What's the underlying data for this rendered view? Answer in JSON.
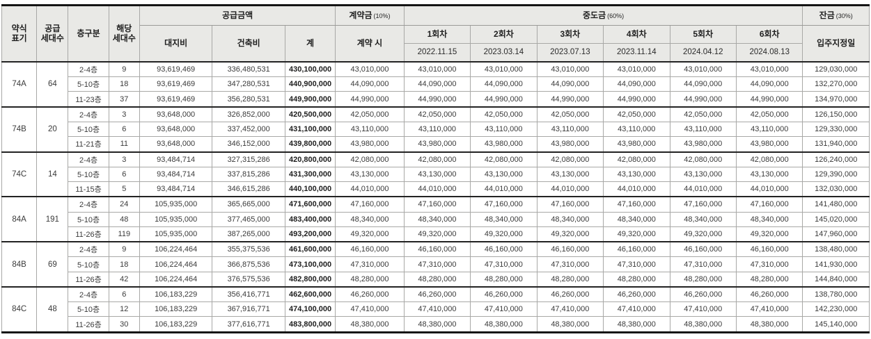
{
  "table": {
    "headers": {
      "abbr": "약식\n표기",
      "supply_units": "공급\n세대수",
      "floor_division": "층구분",
      "unit_count": "해당\n세대수",
      "supply_amount_group": "공급금액",
      "land_cost": "대지비",
      "construction_cost": "건축비",
      "total": "계",
      "contract_group": "계약금",
      "contract_pct": "(10%)",
      "at_contract": "계약 시",
      "interim_group": "중도금",
      "interim_pct": "(60%)",
      "installments": [
        {
          "label": "1회차",
          "date": "2022.11.15"
        },
        {
          "label": "2회차",
          "date": "2023.03.14"
        },
        {
          "label": "3회차",
          "date": "2023.07.13"
        },
        {
          "label": "4회차",
          "date": "2023.11.14"
        },
        {
          "label": "5회차",
          "date": "2024.04.12"
        },
        {
          "label": "6회차",
          "date": "2024.08.13"
        }
      ],
      "balance_group": "잔금",
      "balance_pct": "(30%)",
      "move_in": "입주지정일"
    },
    "groups": [
      {
        "abbr": "74A",
        "supply_units": "64",
        "rows": [
          {
            "floor": "2-4층",
            "units": "9",
            "land": "93,619,469",
            "construction": "336,480,531",
            "total": "430,100,000",
            "contract": "43,010,000",
            "installments": [
              "43,010,000",
              "43,010,000",
              "43,010,000",
              "43,010,000",
              "43,010,000",
              "43,010,000"
            ],
            "balance": "129,030,000"
          },
          {
            "floor": "5-10층",
            "units": "18",
            "land": "93,619,469",
            "construction": "347,280,531",
            "total": "440,900,000",
            "contract": "44,090,000",
            "installments": [
              "44,090,000",
              "44,090,000",
              "44,090,000",
              "44,090,000",
              "44,090,000",
              "44,090,000"
            ],
            "balance": "132,270,000"
          },
          {
            "floor": "11-23층",
            "units": "37",
            "land": "93,619,469",
            "construction": "356,280,531",
            "total": "449,900,000",
            "contract": "44,990,000",
            "installments": [
              "44,990,000",
              "44,990,000",
              "44,990,000",
              "44,990,000",
              "44,990,000",
              "44,990,000"
            ],
            "balance": "134,970,000"
          }
        ]
      },
      {
        "abbr": "74B",
        "supply_units": "20",
        "rows": [
          {
            "floor": "2-4층",
            "units": "3",
            "land": "93,648,000",
            "construction": "326,852,000",
            "total": "420,500,000",
            "contract": "42,050,000",
            "installments": [
              "42,050,000",
              "42,050,000",
              "42,050,000",
              "42,050,000",
              "42,050,000",
              "42,050,000"
            ],
            "balance": "126,150,000"
          },
          {
            "floor": "5-10층",
            "units": "6",
            "land": "93,648,000",
            "construction": "337,452,000",
            "total": "431,100,000",
            "contract": "43,110,000",
            "installments": [
              "43,110,000",
              "43,110,000",
              "43,110,000",
              "43,110,000",
              "43,110,000",
              "43,110,000"
            ],
            "balance": "129,330,000"
          },
          {
            "floor": "11-21층",
            "units": "11",
            "land": "93,648,000",
            "construction": "346,152,000",
            "total": "439,800,000",
            "contract": "43,980,000",
            "installments": [
              "43,980,000",
              "43,980,000",
              "43,980,000",
              "43,980,000",
              "43,980,000",
              "43,980,000"
            ],
            "balance": "131,940,000"
          }
        ]
      },
      {
        "abbr": "74C",
        "supply_units": "14",
        "rows": [
          {
            "floor": "2-4층",
            "units": "3",
            "land": "93,484,714",
            "construction": "327,315,286",
            "total": "420,800,000",
            "contract": "42,080,000",
            "installments": [
              "42,080,000",
              "42,080,000",
              "42,080,000",
              "42,080,000",
              "42,080,000",
              "42,080,000"
            ],
            "balance": "126,240,000"
          },
          {
            "floor": "5-10층",
            "units": "6",
            "land": "93,484,714",
            "construction": "337,815,286",
            "total": "431,300,000",
            "contract": "43,130,000",
            "installments": [
              "43,130,000",
              "43,130,000",
              "43,130,000",
              "43,130,000",
              "43,130,000",
              "43,130,000"
            ],
            "balance": "129,390,000"
          },
          {
            "floor": "11-15층",
            "units": "5",
            "land": "93,484,714",
            "construction": "346,615,286",
            "total": "440,100,000",
            "contract": "44,010,000",
            "installments": [
              "44,010,000",
              "44,010,000",
              "44,010,000",
              "44,010,000",
              "44,010,000",
              "44,010,000"
            ],
            "balance": "132,030,000"
          }
        ]
      },
      {
        "abbr": "84A",
        "supply_units": "191",
        "rows": [
          {
            "floor": "2-4층",
            "units": "24",
            "land": "105,935,000",
            "construction": "365,665,000",
            "total": "471,600,000",
            "contract": "47,160,000",
            "installments": [
              "47,160,000",
              "47,160,000",
              "47,160,000",
              "47,160,000",
              "47,160,000",
              "47,160,000"
            ],
            "balance": "141,480,000"
          },
          {
            "floor": "5-10층",
            "units": "48",
            "land": "105,935,000",
            "construction": "377,465,000",
            "total": "483,400,000",
            "contract": "48,340,000",
            "installments": [
              "48,340,000",
              "48,340,000",
              "48,340,000",
              "48,340,000",
              "48,340,000",
              "48,340,000"
            ],
            "balance": "145,020,000"
          },
          {
            "floor": "11-26층",
            "units": "119",
            "land": "105,935,000",
            "construction": "387,265,000",
            "total": "493,200,000",
            "contract": "49,320,000",
            "installments": [
              "49,320,000",
              "49,320,000",
              "49,320,000",
              "49,320,000",
              "49,320,000",
              "49,320,000"
            ],
            "balance": "147,960,000"
          }
        ]
      },
      {
        "abbr": "84B",
        "supply_units": "69",
        "rows": [
          {
            "floor": "2-4층",
            "units": "9",
            "land": "106,224,464",
            "construction": "355,375,536",
            "total": "461,600,000",
            "contract": "46,160,000",
            "installments": [
              "46,160,000",
              "46,160,000",
              "46,160,000",
              "46,160,000",
              "46,160,000",
              "46,160,000"
            ],
            "balance": "138,480,000"
          },
          {
            "floor": "5-10층",
            "units": "18",
            "land": "106,224,464",
            "construction": "366,875,536",
            "total": "473,100,000",
            "contract": "47,310,000",
            "installments": [
              "47,310,000",
              "47,310,000",
              "47,310,000",
              "47,310,000",
              "47,310,000",
              "47,310,000"
            ],
            "balance": "141,930,000"
          },
          {
            "floor": "11-26층",
            "units": "42",
            "land": "106,224,464",
            "construction": "376,575,536",
            "total": "482,800,000",
            "contract": "48,280,000",
            "installments": [
              "48,280,000",
              "48,280,000",
              "48,280,000",
              "48,280,000",
              "48,280,000",
              "48,280,000"
            ],
            "balance": "144,840,000"
          }
        ]
      },
      {
        "abbr": "84C",
        "supply_units": "48",
        "rows": [
          {
            "floor": "2-4층",
            "units": "6",
            "land": "106,183,229",
            "construction": "356,416,771",
            "total": "462,600,000",
            "contract": "46,260,000",
            "installments": [
              "46,260,000",
              "46,260,000",
              "46,260,000",
              "46,260,000",
              "46,260,000",
              "46,260,000"
            ],
            "balance": "138,780,000"
          },
          {
            "floor": "5-10층",
            "units": "12",
            "land": "106,183,229",
            "construction": "367,916,771",
            "total": "474,100,000",
            "contract": "47,410,000",
            "installments": [
              "47,410,000",
              "47,410,000",
              "47,410,000",
              "47,410,000",
              "47,410,000",
              "47,410,000"
            ],
            "balance": "142,230,000"
          },
          {
            "floor": "11-26층",
            "units": "30",
            "land": "106,183,229",
            "construction": "377,616,771",
            "total": "483,800,000",
            "contract": "48,380,000",
            "installments": [
              "48,380,000",
              "48,380,000",
              "48,380,000",
              "48,380,000",
              "48,380,000",
              "48,380,000"
            ],
            "balance": "145,140,000"
          }
        ]
      }
    ]
  }
}
